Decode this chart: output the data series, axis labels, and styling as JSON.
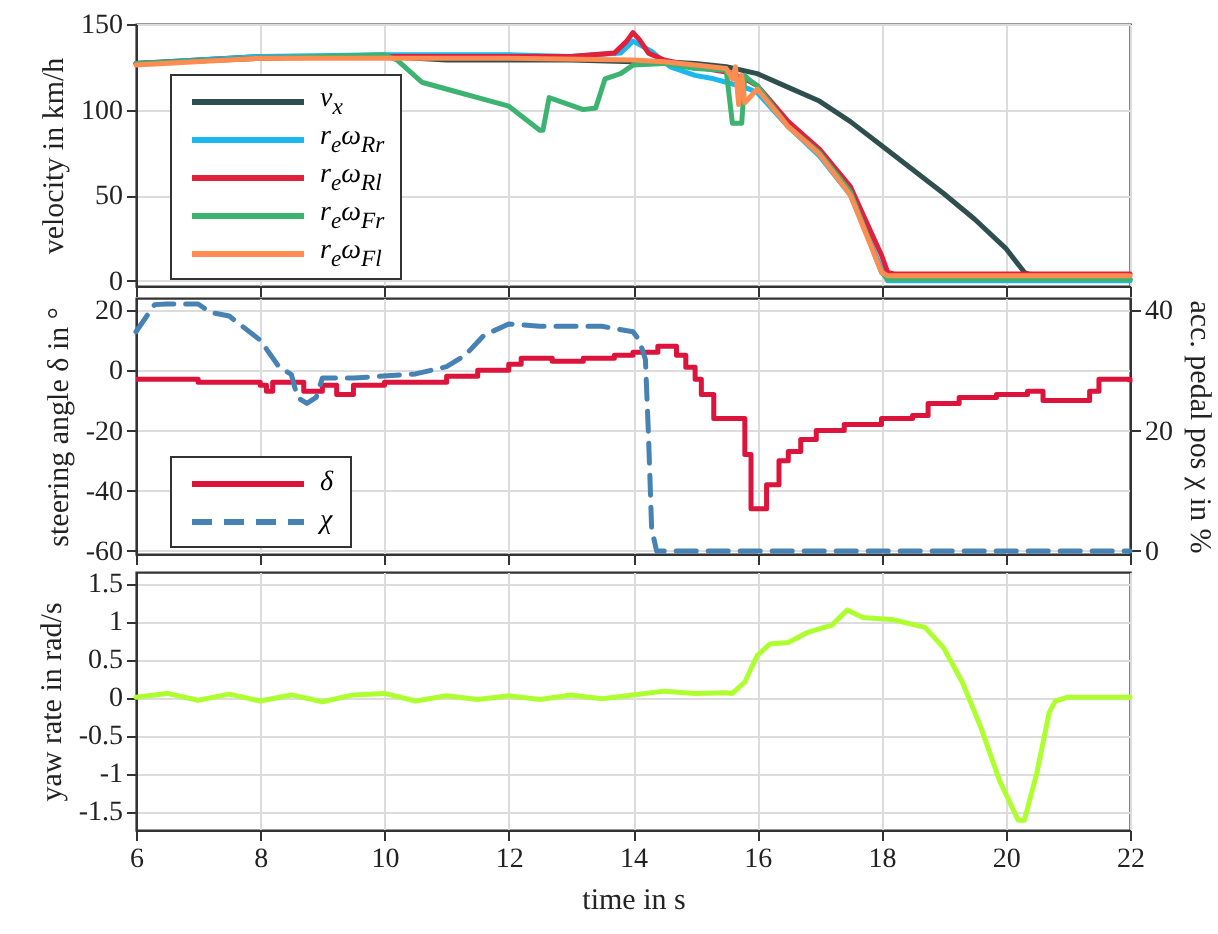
{
  "chart_data": [
    {
      "type": "line",
      "ylabel": "velocity in km/h",
      "xlim": [
        6,
        22
      ],
      "xticks": [
        6,
        8,
        10,
        12,
        14,
        16,
        18,
        20,
        22
      ],
      "ylim": [
        -3,
        150
      ],
      "yticks": [
        0,
        50,
        100,
        150
      ],
      "grid": true,
      "legend": "bottom left",
      "tick_labels": "y",
      "series": [
        {
          "name": "v$_{x}$",
          "color": "#2f4f4f",
          "x": [
            6,
            7,
            8,
            9,
            10,
            11,
            12,
            13,
            14,
            14.5,
            15,
            15.5,
            16,
            16.5,
            17,
            17.5,
            18,
            18.5,
            19,
            19.5,
            20,
            20.3,
            20.5,
            21,
            22
          ],
          "values": [
            127,
            129,
            131,
            131,
            131,
            129,
            129,
            129,
            128,
            128,
            127,
            125,
            121,
            113,
            105,
            93,
            79,
            65,
            51,
            36,
            19,
            5,
            2,
            1,
            1
          ]
        },
        {
          "name": "r$_{e}$ω$_{Rr}$",
          "color": "#1ab8f0",
          "x": [
            6,
            8,
            10,
            11,
            12,
            13,
            13.8,
            14,
            14.3,
            14.6,
            15,
            15.3,
            15.5,
            15.8,
            16,
            16.5,
            17,
            17.5,
            18,
            18.1,
            19,
            20,
            22
          ],
          "values": [
            127,
            131,
            132,
            132,
            132,
            131,
            133,
            140,
            134,
            125,
            120,
            118,
            116,
            113,
            110,
            90,
            73,
            50,
            7,
            0,
            0,
            0,
            0
          ]
        },
        {
          "name": "r$_{e}$ω$_{Rl}$",
          "color": "#e0203c",
          "x": [
            6,
            8,
            10,
            12,
            13,
            13.7,
            13.9,
            14,
            14.1,
            14.25,
            14.5,
            15,
            15.5,
            15.8,
            16,
            16.5,
            17,
            17.5,
            18,
            18.1,
            18.2,
            20,
            22
          ],
          "values": [
            127,
            130,
            131,
            131,
            131,
            133,
            140,
            145,
            141,
            133,
            129,
            125,
            122,
            118,
            114,
            93,
            77,
            55,
            15,
            5,
            4,
            4,
            4
          ]
        },
        {
          "name": "r$_{e}$ω$_{Fr}$",
          "color": "#3cb371",
          "x": [
            6,
            8,
            10,
            10.2,
            10.6,
            11.2,
            11.5,
            12,
            12.5,
            12.55,
            12.65,
            13.2,
            13.4,
            13.55,
            13.8,
            14,
            14.5,
            15,
            15.5,
            15.6,
            15.75,
            15.8,
            15.85,
            16,
            16.5,
            17,
            17.5,
            18,
            18.1,
            20,
            22
          ],
          "values": [
            127,
            130,
            132,
            129,
            116,
            110,
            107,
            102,
            88,
            88,
            107,
            100,
            101,
            118,
            121,
            126,
            127,
            124,
            123,
            92,
            92,
            120,
            118,
            114,
            90,
            75,
            52,
            5,
            1,
            1,
            1
          ]
        },
        {
          "name": "r$_{e}$ω$_{Fl}$",
          "color": "#ff8c50",
          "x": [
            6,
            8,
            10,
            12,
            14,
            14.5,
            15,
            15.5,
            15.6,
            15.65,
            15.7,
            15.75,
            15.8,
            16,
            16.5,
            17,
            17.5,
            18,
            18.1,
            20,
            22
          ],
          "values": [
            126,
            130,
            130,
            130,
            129,
            128,
            126,
            124,
            118,
            125,
            103,
            120,
            104,
            112,
            90,
            74,
            50,
            5,
            3,
            3,
            3
          ]
        }
      ]
    },
    {
      "type": "line",
      "ylabel": "steering angle δ in °",
      "y2label": "acc. pedal pos χ in %",
      "xlim": [
        6,
        22
      ],
      "xticks": [
        6,
        8,
        10,
        12,
        14,
        16,
        18,
        20,
        22
      ],
      "ylim": [
        -61,
        24
      ],
      "yticks": [
        -60,
        -40,
        -20,
        0,
        20
      ],
      "y2lim": [
        -0.5,
        42
      ],
      "y2ticks": [
        0,
        20,
        40
      ],
      "grid": true,
      "legend": "bottom left",
      "tick_labels": "y",
      "series": [
        {
          "name": "δ",
          "type": "step",
          "color": "#dc143c",
          "line_style": "solid",
          "x": [
            6,
            7,
            8,
            8.1,
            8.2,
            8.5,
            8.7,
            9,
            9.23,
            9.5,
            10,
            10.5,
            11,
            11.5,
            12,
            12.2,
            12.7,
            13.2,
            13.7,
            14,
            14.4,
            14.7,
            14.85,
            15,
            15.1,
            15.3,
            15.8,
            15.9,
            16.15,
            16.35,
            16.5,
            16.7,
            16.95,
            17.4,
            18,
            18.5,
            18.75,
            19.25,
            19.85,
            20.35,
            20.6,
            21.35,
            21.5,
            22
          ],
          "values": [
            -3,
            -4,
            -5,
            -7,
            -4,
            -4,
            -7,
            -5,
            -8,
            -5,
            -4,
            -4,
            -2,
            0,
            2,
            4,
            3,
            4,
            5,
            6,
            8,
            5,
            1,
            -3,
            -8,
            -16,
            -28,
            -46,
            -38,
            -30,
            -27,
            -23,
            -20,
            -18,
            -16,
            -15,
            -11,
            -9,
            -8,
            -7,
            -10,
            -7,
            -3,
            -4
          ]
        },
        {
          "name": "χ",
          "axis": "y2",
          "color": "#4682b4",
          "line_style": "dashed",
          "x": [
            6,
            6.3,
            6.5,
            7,
            7.2,
            7.5,
            8,
            8.3,
            8.5,
            8.6,
            8.75,
            8.9,
            9,
            9.5,
            10.5,
            11,
            11.3,
            11.6,
            12,
            12.5,
            13,
            13.5,
            14,
            14.1,
            14.2,
            14.25,
            14.3,
            14.38,
            16,
            18,
            20,
            22
          ],
          "values": [
            36.4,
            40.9,
            41,
            41,
            39.6,
            39,
            35,
            30.6,
            29.3,
            25.5,
            24.5,
            25.5,
            28.7,
            28.7,
            29.4,
            30.6,
            32.5,
            35.8,
            37.7,
            37.3,
            37.3,
            37.3,
            36.4,
            35,
            31.8,
            19,
            3.7,
            0,
            0,
            0,
            0,
            0
          ]
        }
      ]
    },
    {
      "type": "line",
      "ylabel": "yaw rate in rad/s",
      "xlabel": "time in s",
      "xlim": [
        6,
        22
      ],
      "xticks": [
        6,
        8,
        10,
        12,
        14,
        16,
        18,
        20,
        22
      ],
      "ylim": [
        -1.75,
        1.65
      ],
      "yticks": [
        -1.5,
        -1,
        -0.5,
        0,
        0.5,
        1,
        1.5
      ],
      "grid": true,
      "series": [
        {
          "color": "#adff2f",
          "x": [
            6,
            6.5,
            7,
            7.5,
            8,
            8.5,
            9,
            9.5,
            10,
            10.5,
            11,
            11.5,
            12,
            12.5,
            13,
            13.5,
            14,
            14.5,
            15,
            15.5,
            15.6,
            15.8,
            16,
            16.2,
            16.5,
            16.8,
            17.2,
            17.45,
            17.7,
            18.2,
            18.7,
            19,
            19.3,
            19.6,
            19.9,
            20.2,
            20.3,
            20.5,
            20.7,
            20.8,
            21,
            22
          ],
          "values": [
            0,
            0.05,
            -0.04,
            0.04,
            -0.05,
            0.03,
            -0.06,
            0.03,
            0.05,
            -0.05,
            0.02,
            -0.03,
            0.02,
            -0.03,
            0.03,
            -0.02,
            0.03,
            0.08,
            0.05,
            0.06,
            0.05,
            0.2,
            0.55,
            0.7,
            0.72,
            0.85,
            0.95,
            1.15,
            1.05,
            1.02,
            0.92,
            0.65,
            0.2,
            -0.4,
            -1.1,
            -1.62,
            -1.62,
            -1,
            -0.2,
            -0.05,
            0,
            0
          ]
        }
      ]
    }
  ]
}
